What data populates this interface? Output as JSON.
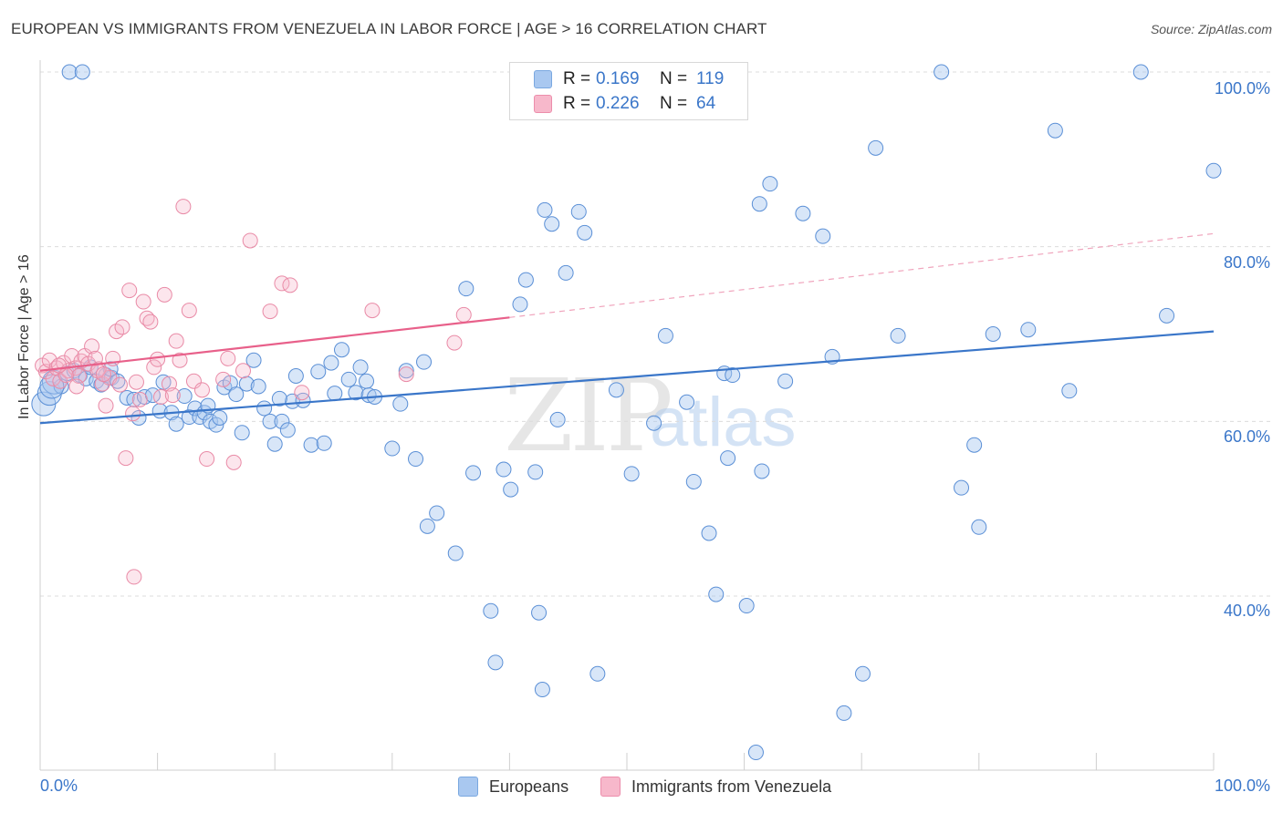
{
  "header": {
    "title": "EUROPEAN VS IMMIGRANTS FROM VENEZUELA IN LABOR FORCE | AGE > 16 CORRELATION CHART",
    "source": "Source: ZipAtlas.com"
  },
  "watermark": {
    "part1": "ZIP",
    "part2": "atlas"
  },
  "legend_box": {
    "rows": [
      {
        "r_label": "R =",
        "r_value": "0.169",
        "n_label": "N =",
        "n_value": "119",
        "color": "#a9c8f0"
      },
      {
        "r_label": "R =",
        "r_value": "0.226",
        "n_label": "N =",
        "n_value": "64",
        "color": "#f7b8cb"
      }
    ]
  },
  "bottom_legend": {
    "items": [
      {
        "label": "Europeans",
        "color": "#a9c8f0"
      },
      {
        "label": "Immigrants from Venezuela",
        "color": "#f7b8cb"
      }
    ]
  },
  "chart_data": {
    "type": "scatter",
    "title": "EUROPEAN VS IMMIGRANTS FROM VENEZUELA IN LABOR FORCE | AGE > 16 CORRELATION CHART",
    "xlabel": "",
    "ylabel": "In Labor Force | Age > 16",
    "xlim": [
      0,
      100
    ],
    "ylim": [
      20,
      104
    ],
    "x_ticks": [
      "0.0%",
      "100.0%"
    ],
    "y_ticks": [
      {
        "value": 100,
        "label": "100.0%"
      },
      {
        "value": 80,
        "label": "80.0%"
      },
      {
        "value": 60,
        "label": "60.0%"
      },
      {
        "value": 40,
        "label": "40.0%"
      }
    ],
    "grid": true,
    "colors": {
      "europeans": "#3a76c9",
      "venezuela": "#e8608a",
      "tick_text": "#3a76c9"
    },
    "series": [
      {
        "name": "Europeans",
        "r": 0.169,
        "n": 119,
        "trend": {
          "x": [
            0,
            100
          ],
          "y": [
            59.8,
            70.3
          ],
          "dashed_from": null
        },
        "points": [
          [
            0.3,
            62.0
          ],
          [
            0.8,
            63.2
          ],
          [
            1.2,
            64.5
          ],
          [
            1.8,
            64.0
          ],
          [
            2.3,
            65.5
          ],
          [
            2.9,
            65.8
          ],
          [
            3.4,
            65.3
          ],
          [
            3.9,
            64.9
          ],
          [
            4.3,
            66.2
          ],
          [
            4.8,
            64.6
          ],
          [
            5.2,
            64.2
          ],
          [
            5.6,
            65.3
          ],
          [
            6.1,
            65.0
          ],
          [
            6.6,
            64.6
          ],
          [
            7.4,
            62.7
          ],
          [
            8.0,
            62.5
          ],
          [
            8.4,
            60.4
          ],
          [
            8.9,
            62.8
          ],
          [
            9.6,
            63.0
          ],
          [
            10.2,
            61.2
          ],
          [
            10.5,
            64.5
          ],
          [
            11.2,
            61.0
          ],
          [
            11.6,
            59.7
          ],
          [
            12.3,
            62.9
          ],
          [
            12.7,
            60.5
          ],
          [
            13.2,
            61.5
          ],
          [
            13.6,
            60.5
          ],
          [
            14.0,
            61.0
          ],
          [
            14.5,
            60.0
          ],
          [
            15.0,
            59.6
          ],
          [
            15.3,
            60.4
          ],
          [
            15.7,
            63.9
          ],
          [
            16.2,
            64.4
          ],
          [
            16.7,
            63.1
          ],
          [
            17.2,
            58.7
          ],
          [
            17.6,
            64.3
          ],
          [
            18.2,
            67.0
          ],
          [
            18.6,
            64.0
          ],
          [
            19.1,
            61.5
          ],
          [
            19.6,
            60.0
          ],
          [
            20.0,
            57.4
          ],
          [
            20.6,
            60.0
          ],
          [
            21.1,
            59.0
          ],
          [
            21.5,
            62.3
          ],
          [
            21.8,
            65.2
          ],
          [
            22.4,
            62.4
          ],
          [
            23.1,
            57.3
          ],
          [
            23.7,
            65.7
          ],
          [
            24.2,
            57.5
          ],
          [
            24.8,
            66.7
          ],
          [
            25.1,
            63.2
          ],
          [
            25.7,
            68.2
          ],
          [
            26.3,
            64.8
          ],
          [
            26.9,
            63.3
          ],
          [
            27.3,
            66.2
          ],
          [
            27.8,
            64.6
          ],
          [
            28.0,
            63.0
          ],
          [
            28.5,
            62.8
          ],
          [
            30.0,
            56.9
          ],
          [
            30.7,
            62.0
          ],
          [
            31.2,
            65.8
          ],
          [
            32.0,
            55.7
          ],
          [
            32.7,
            66.8
          ],
          [
            33.0,
            48.0
          ],
          [
            33.8,
            49.5
          ],
          [
            35.4,
            44.9
          ],
          [
            36.3,
            75.2
          ],
          [
            36.9,
            54.1
          ],
          [
            38.4,
            38.3
          ],
          [
            38.8,
            32.4
          ],
          [
            39.5,
            54.5
          ],
          [
            40.1,
            52.2
          ],
          [
            40.9,
            73.4
          ],
          [
            41.4,
            76.2
          ],
          [
            42.2,
            54.2
          ],
          [
            42.5,
            38.1
          ],
          [
            42.8,
            29.3
          ],
          [
            43.0,
            84.2
          ],
          [
            43.6,
            82.6
          ],
          [
            44.1,
            60.2
          ],
          [
            44.8,
            77.0
          ],
          [
            45.9,
            84.0
          ],
          [
            46.4,
            81.6
          ],
          [
            47.5,
            31.1
          ],
          [
            49.1,
            63.6
          ],
          [
            50.4,
            54.0
          ],
          [
            52.3,
            59.8
          ],
          [
            53.3,
            69.8
          ],
          [
            55.1,
            62.2
          ],
          [
            55.7,
            53.1
          ],
          [
            57.0,
            47.2
          ],
          [
            57.6,
            40.2
          ],
          [
            58.3,
            65.5
          ],
          [
            58.6,
            55.8
          ],
          [
            59.0,
            65.3
          ],
          [
            60.2,
            38.9
          ],
          [
            61.3,
            84.9
          ],
          [
            61.5,
            54.3
          ],
          [
            62.2,
            87.2
          ],
          [
            63.5,
            64.6
          ],
          [
            65.0,
            83.8
          ],
          [
            66.7,
            81.2
          ],
          [
            67.5,
            67.4
          ],
          [
            68.5,
            26.6
          ],
          [
            70.1,
            31.1
          ],
          [
            71.2,
            91.3
          ],
          [
            73.1,
            69.8
          ],
          [
            76.8,
            100.0
          ],
          [
            78.5,
            52.4
          ],
          [
            79.6,
            57.3
          ],
          [
            80.0,
            47.9
          ],
          [
            81.2,
            70.0
          ],
          [
            84.2,
            70.5
          ],
          [
            86.5,
            93.3
          ],
          [
            87.7,
            63.5
          ],
          [
            93.8,
            100.0
          ],
          [
            96.0,
            72.1
          ],
          [
            100.0,
            88.7
          ],
          [
            61.0,
            22.1
          ],
          [
            45.1,
            100.0
          ],
          [
            49.5,
            100.0
          ],
          [
            2.5,
            100.0
          ],
          [
            3.6,
            100.0
          ],
          [
            1.0,
            64.0
          ],
          [
            6.0,
            66.0
          ],
          [
            14.3,
            61.8
          ],
          [
            20.4,
            62.6
          ]
        ]
      },
      {
        "name": "Immigrants from Venezuela",
        "r": 0.226,
        "n": 64,
        "trend": {
          "x": [
            0,
            40
          ],
          "y": [
            65.8,
            71.9
          ],
          "dashed_to": {
            "x": 100,
            "y": 81.5
          }
        },
        "points": [
          [
            0.2,
            66.4
          ],
          [
            0.5,
            65.7
          ],
          [
            0.8,
            67.0
          ],
          [
            1.1,
            64.9
          ],
          [
            1.4,
            66.1
          ],
          [
            1.7,
            64.6
          ],
          [
            2.0,
            66.7
          ],
          [
            2.4,
            65.8
          ],
          [
            2.7,
            67.5
          ],
          [
            3.0,
            66.1
          ],
          [
            3.3,
            65.2
          ],
          [
            3.5,
            66.9
          ],
          [
            3.8,
            67.5
          ],
          [
            4.1,
            66.6
          ],
          [
            4.4,
            68.6
          ],
          [
            4.7,
            67.2
          ],
          [
            5.0,
            66.0
          ],
          [
            5.3,
            64.3
          ],
          [
            5.6,
            61.8
          ],
          [
            5.9,
            65.0
          ],
          [
            6.2,
            67.2
          ],
          [
            6.5,
            70.3
          ],
          [
            6.8,
            64.2
          ],
          [
            7.0,
            70.8
          ],
          [
            7.3,
            55.8
          ],
          [
            7.6,
            75.0
          ],
          [
            7.9,
            60.9
          ],
          [
            8.2,
            64.5
          ],
          [
            8.5,
            62.5
          ],
          [
            8.8,
            73.7
          ],
          [
            9.1,
            71.8
          ],
          [
            9.4,
            71.4
          ],
          [
            9.7,
            66.2
          ],
          [
            10.0,
            67.1
          ],
          [
            10.3,
            62.8
          ],
          [
            10.6,
            74.5
          ],
          [
            11.0,
            64.3
          ],
          [
            11.3,
            63.0
          ],
          [
            11.6,
            69.2
          ],
          [
            11.9,
            67.0
          ],
          [
            12.2,
            84.6
          ],
          [
            12.7,
            72.7
          ],
          [
            13.1,
            64.6
          ],
          [
            13.8,
            63.6
          ],
          [
            14.2,
            55.7
          ],
          [
            15.6,
            64.8
          ],
          [
            16.0,
            67.2
          ],
          [
            16.5,
            55.3
          ],
          [
            17.3,
            65.8
          ],
          [
            17.9,
            80.7
          ],
          [
            19.6,
            72.6
          ],
          [
            20.6,
            75.8
          ],
          [
            21.3,
            75.6
          ],
          [
            22.3,
            63.3
          ],
          [
            28.3,
            72.7
          ],
          [
            31.2,
            65.4
          ],
          [
            35.3,
            69.0
          ],
          [
            36.1,
            72.2
          ],
          [
            4.9,
            65.8
          ],
          [
            2.2,
            65.3
          ],
          [
            1.6,
            66.4
          ],
          [
            8.0,
            42.2
          ],
          [
            3.1,
            64.0
          ],
          [
            5.4,
            65.4
          ]
        ]
      }
    ]
  }
}
